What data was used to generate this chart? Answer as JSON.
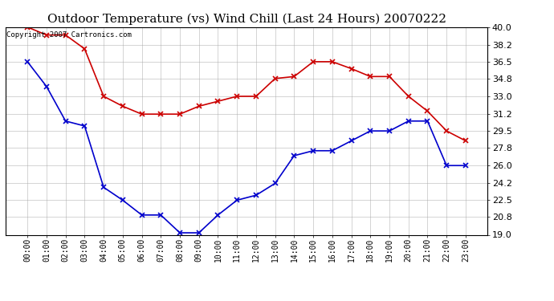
{
  "title": "Outdoor Temperature (vs) Wind Chill (Last 24 Hours) 20070222",
  "copyright_text": "Copyright 2007 Cartronics.com",
  "x_labels": [
    "00:00",
    "01:00",
    "02:00",
    "03:00",
    "04:00",
    "05:00",
    "06:00",
    "07:00",
    "08:00",
    "09:00",
    "10:00",
    "11:00",
    "12:00",
    "13:00",
    "14:00",
    "15:00",
    "16:00",
    "17:00",
    "18:00",
    "19:00",
    "20:00",
    "21:00",
    "22:00",
    "23:00"
  ],
  "temp_data": [
    40.0,
    39.2,
    39.2,
    37.8,
    33.0,
    32.0,
    31.2,
    31.2,
    31.2,
    32.0,
    32.5,
    33.0,
    33.0,
    34.8,
    35.0,
    36.5,
    36.5,
    35.8,
    35.0,
    35.0,
    33.0,
    31.5,
    29.5,
    28.5
  ],
  "windchill_data": [
    36.5,
    34.0,
    30.5,
    30.0,
    23.8,
    22.5,
    21.0,
    21.0,
    19.2,
    19.2,
    21.0,
    22.5,
    23.0,
    24.2,
    27.0,
    27.5,
    27.5,
    28.5,
    29.5,
    29.5,
    30.5,
    30.5,
    26.0,
    26.0
  ],
  "temp_color": "#cc0000",
  "windchill_color": "#0000cc",
  "bg_color": "#ffffff",
  "plot_bg_color": "#ffffff",
  "grid_color": "#aaaaaa",
  "ylim": [
    19.0,
    40.0
  ],
  "yticks": [
    19.0,
    20.8,
    22.5,
    24.2,
    26.0,
    27.8,
    29.5,
    31.2,
    33.0,
    34.8,
    36.5,
    38.2,
    40.0
  ],
  "title_fontsize": 11,
  "copyright_fontsize": 6.5,
  "tick_fontsize": 7,
  "ytick_fontsize": 8
}
